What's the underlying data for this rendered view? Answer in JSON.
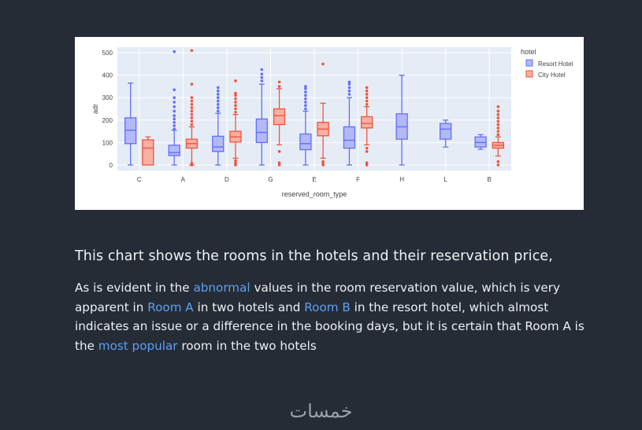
{
  "chart_data": {
    "type": "box",
    "xlabel": "reserved_room_type",
    "ylabel": "adr",
    "ylim": [
      -25,
      525
    ],
    "yticks": [
      0,
      100,
      200,
      300,
      400,
      500
    ],
    "categories": [
      "C",
      "A",
      "D",
      "G",
      "E",
      "F",
      "H",
      "L",
      "B"
    ],
    "legend_title": "hotel",
    "legend_position": "top-right",
    "series": [
      {
        "name": "Resort Hotel",
        "color": "#636efa",
        "fill": "#b3b9f7",
        "boxes": [
          {
            "cat": "C",
            "min": 0,
            "q1": 95,
            "median": 155,
            "q3": 210,
            "max": 365,
            "outliers": []
          },
          {
            "cat": "A",
            "min": 0,
            "q1": 42,
            "median": 55,
            "q3": 88,
            "max": 155,
            "outliers": [
              160,
              175,
              190,
              205,
              220,
              240,
              260,
              280,
              300,
              335,
              505
            ]
          },
          {
            "cat": "D",
            "min": 0,
            "q1": 60,
            "median": 80,
            "q3": 128,
            "max": 230,
            "outliers": [
              240,
              255,
              270,
              285,
              300,
              315,
              330,
              345
            ]
          },
          {
            "cat": "G",
            "min": 0,
            "q1": 100,
            "median": 145,
            "q3": 205,
            "max": 360,
            "outliers": [
              375,
              390,
              405,
              425
            ]
          },
          {
            "cat": "E",
            "min": 0,
            "q1": 68,
            "median": 95,
            "q3": 138,
            "max": 240,
            "outliers": [
              250,
              265,
              280,
              295,
              310,
              325,
              340,
              350
            ]
          },
          {
            "cat": "F",
            "min": 0,
            "q1": 75,
            "median": 110,
            "q3": 170,
            "max": 300,
            "outliers": [
              315,
              330,
              345,
              360,
              370
            ]
          },
          {
            "cat": "H",
            "min": 0,
            "q1": 115,
            "median": 170,
            "q3": 228,
            "max": 400,
            "outliers": []
          },
          {
            "cat": "L",
            "min": 80,
            "q1": 115,
            "median": 160,
            "q3": 185,
            "max": 200,
            "outliers": []
          },
          {
            "cat": "B",
            "min": 70,
            "q1": 80,
            "median": 100,
            "q3": 125,
            "max": 135,
            "outliers": []
          }
        ]
      },
      {
        "name": "City Hotel",
        "color": "#ef553b",
        "fill": "#f7b0a3",
        "boxes": [
          {
            "cat": "C",
            "min": 0,
            "q1": 0,
            "median": 75,
            "q3": 112,
            "max": 125,
            "outliers": []
          },
          {
            "cat": "A",
            "min": 0,
            "q1": 75,
            "median": 95,
            "q3": 115,
            "max": 170,
            "outliers": [
              0,
              8,
              180,
              195,
              210,
              225,
              240,
              255,
              270,
              285,
              300,
              360,
              510
            ]
          },
          {
            "cat": "D",
            "min": 30,
            "q1": 102,
            "median": 125,
            "q3": 150,
            "max": 225,
            "outliers": [
              0,
              10,
              20,
              235,
              250,
              265,
              280,
              295,
              310,
              320,
              375
            ]
          },
          {
            "cat": "G",
            "min": 90,
            "q1": 180,
            "median": 220,
            "q3": 250,
            "max": 340,
            "outliers": [
              0,
              10,
              60,
              350,
              370
            ]
          },
          {
            "cat": "E",
            "min": 30,
            "q1": 130,
            "median": 160,
            "q3": 190,
            "max": 275,
            "outliers": [
              0,
              5,
              15,
              450
            ]
          },
          {
            "cat": "F",
            "min": 90,
            "q1": 165,
            "median": 185,
            "q3": 215,
            "max": 260,
            "outliers": [
              0,
              10,
              60,
              75,
              270,
              285,
              300,
              315,
              330,
              345
            ]
          },
          {
            "cat": "B",
            "min": 40,
            "q1": 75,
            "median": 88,
            "q3": 100,
            "max": 125,
            "outliers": [
              0,
              15,
              135,
              150,
              165,
              180,
              195,
              210,
              225,
              240,
              260
            ]
          }
        ]
      }
    ]
  },
  "caption": "This chart shows the rooms in the hotels and their reservation price,",
  "paragraph": {
    "p1": "As is evident in the ",
    "h1": "abnormal",
    "p2": " values in the room reservation value, which is very apparent in ",
    "h2": "Room A",
    "p3": " in two hotels and ",
    "h3": "Room B",
    "p4": " in the resort hotel, which almost indicates an issue or a difference in the booking days, but it is certain that Room A is the ",
    "h4": "most popular",
    "p5": " room in the two hotels"
  },
  "footer": {
    "logo_text": "خمسات"
  }
}
